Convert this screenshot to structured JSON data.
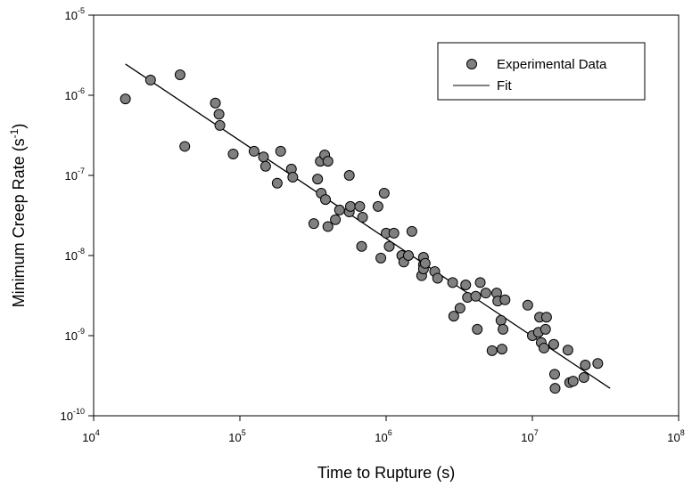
{
  "chart_data": {
    "type": "scatter",
    "xlabel": "Time to Rupture (s)",
    "ylabel_main": "Minimum Creep Rate (s",
    "ylabel_sup": "-1",
    "ylabel_close": ")",
    "xscale": "log",
    "yscale": "log",
    "xlim": [
      10000,
      100000000
    ],
    "ylim": [
      1e-10,
      1e-05
    ],
    "x_ticks": [
      {
        "base": "10",
        "exp": "4",
        "value": 10000
      },
      {
        "base": "10",
        "exp": "5",
        "value": 100000
      },
      {
        "base": "10",
        "exp": "6",
        "value": 1000000
      },
      {
        "base": "10",
        "exp": "7",
        "value": 10000000
      },
      {
        "base": "10",
        "exp": "8",
        "value": 100000000
      }
    ],
    "y_ticks": [
      {
        "base": "10",
        "exp": "-10",
        "value": 1e-10
      },
      {
        "base": "10",
        "exp": "-9",
        "value": 1e-09
      },
      {
        "base": "10",
        "exp": "-8",
        "value": 1e-08
      },
      {
        "base": "10",
        "exp": "-7",
        "value": 1e-07
      },
      {
        "base": "10",
        "exp": "-6",
        "value": 1e-06
      },
      {
        "base": "10",
        "exp": "-5",
        "value": 1e-05
      }
    ],
    "grid": false,
    "legend_position": "top-right",
    "legend": [
      {
        "label": "Experimental Data",
        "kind": "marker"
      },
      {
        "label": "Fit",
        "kind": "line"
      }
    ],
    "marker_color": "#808080",
    "marker_edge": "#000000",
    "fit_color": "#000000",
    "series": [
      {
        "name": "Experimental Data",
        "points": [
          [
            16500,
            9e-07
          ],
          [
            24500,
            1.55e-06
          ],
          [
            39000,
            1.8e-06
          ],
          [
            42000,
            2.3e-07
          ],
          [
            68000,
            8e-07
          ],
          [
            72000,
            5.8e-07
          ],
          [
            73000,
            4.2e-07
          ],
          [
            90000,
            1.85e-07
          ],
          [
            125000,
            2e-07
          ],
          [
            145000,
            1.7e-07
          ],
          [
            150000,
            1.3e-07
          ],
          [
            180000,
            8e-08
          ],
          [
            190000,
            2e-07
          ],
          [
            225000,
            1.2e-07
          ],
          [
            230000,
            9.5e-08
          ],
          [
            320000,
            2.5e-08
          ],
          [
            340000,
            9e-08
          ],
          [
            355000,
            1.5e-07
          ],
          [
            360000,
            6e-08
          ],
          [
            380000,
            1.8e-07
          ],
          [
            385000,
            5e-08
          ],
          [
            400000,
            1.5e-07
          ],
          [
            400000,
            2.3e-08
          ],
          [
            450000,
            2.8e-08
          ],
          [
            480000,
            3.7e-08
          ],
          [
            560000,
            1e-07
          ],
          [
            560000,
            3.5e-08
          ],
          [
            570000,
            4.1e-08
          ],
          [
            660000,
            4.1e-08
          ],
          [
            680000,
            1.3e-08
          ],
          [
            690000,
            3e-08
          ],
          [
            880000,
            4.1e-08
          ],
          [
            920000,
            9.3e-09
          ],
          [
            970000,
            6e-08
          ],
          [
            1000000,
            1.9e-08
          ],
          [
            1050000,
            1.3e-08
          ],
          [
            1130000,
            1.9e-08
          ],
          [
            1280000,
            1e-08
          ],
          [
            1320000,
            8.3e-09
          ],
          [
            1420000,
            1e-08
          ],
          [
            1500000,
            2e-08
          ],
          [
            1750000,
            5.6e-09
          ],
          [
            1800000,
            9.5e-09
          ],
          [
            1800000,
            7.7e-09
          ],
          [
            1800000,
            6.8e-09
          ],
          [
            1850000,
            8e-09
          ],
          [
            2150000,
            6.3e-09
          ],
          [
            2250000,
            5.2e-09
          ],
          [
            2850000,
            4.6e-09
          ],
          [
            2900000,
            1.75e-09
          ],
          [
            3200000,
            2.2e-09
          ],
          [
            3500000,
            4.3e-09
          ],
          [
            3600000,
            3e-09
          ],
          [
            4100000,
            3.1e-09
          ],
          [
            4200000,
            1.2e-09
          ],
          [
            4400000,
            4.6e-09
          ],
          [
            4800000,
            3.4e-09
          ],
          [
            5300000,
            6.5e-10
          ],
          [
            5700000,
            3.4e-09
          ],
          [
            5800000,
            2.7e-09
          ],
          [
            6100000,
            1.55e-09
          ],
          [
            6200000,
            6.8e-10
          ],
          [
            6300000,
            1.2e-09
          ],
          [
            6500000,
            2.8e-09
          ],
          [
            9300000,
            2.4e-09
          ],
          [
            10000000,
            1e-09
          ],
          [
            11000000,
            1.1e-09
          ],
          [
            11200000,
            1.7e-09
          ],
          [
            11500000,
            8.2e-10
          ],
          [
            12000000,
            7e-10
          ],
          [
            12300000,
            1.2e-09
          ],
          [
            12500000,
            1.7e-09
          ],
          [
            14000000,
            7.8e-10
          ],
          [
            14200000,
            3.3e-10
          ],
          [
            14300000,
            2.2e-10
          ],
          [
            17500000,
            6.6e-10
          ],
          [
            18000000,
            2.6e-10
          ],
          [
            19000000,
            2.7e-10
          ],
          [
            22500000,
            3e-10
          ],
          [
            23000000,
            4.3e-10
          ],
          [
            28000000,
            4.5e-10
          ]
        ]
      },
      {
        "name": "Fit",
        "kind": "line",
        "points": [
          [
            16500,
            2.45e-06
          ],
          [
            34000000,
            2.2e-10
          ]
        ]
      }
    ]
  }
}
